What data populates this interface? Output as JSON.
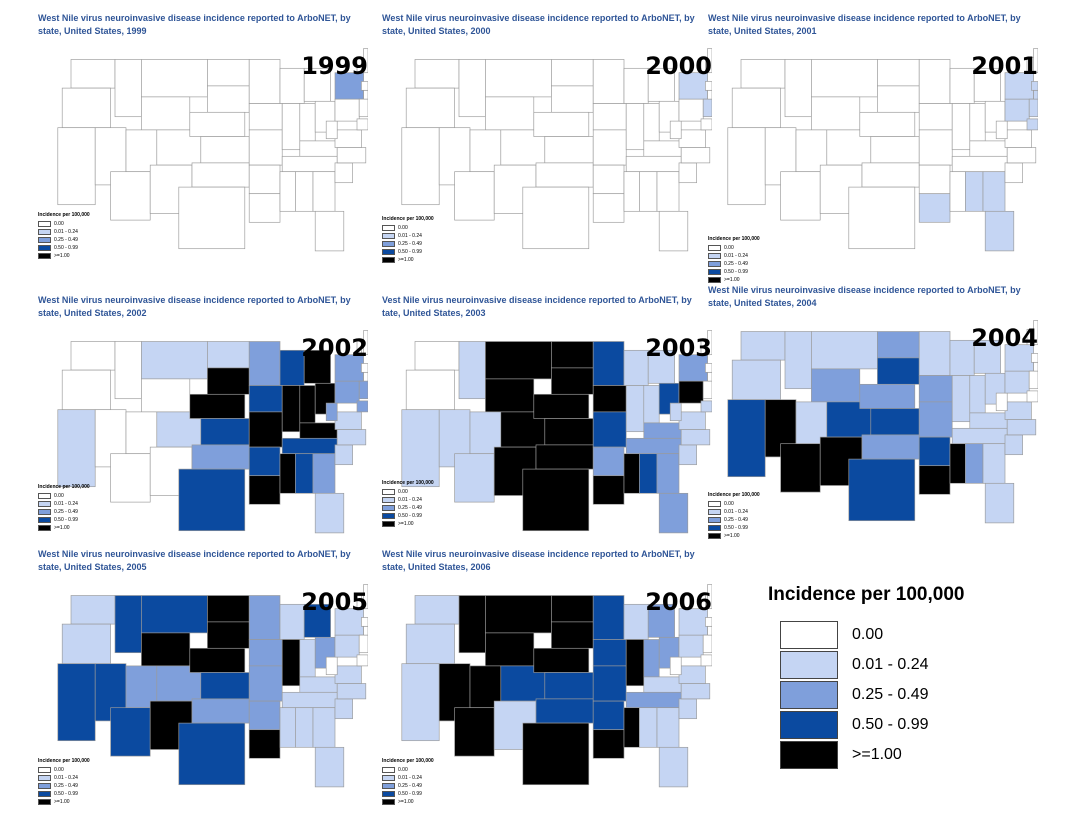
{
  "colors": {
    "none": "#ffffff",
    "low": "#c5d5f3",
    "mid": "#7f9fdb",
    "high": "#0b4aa0",
    "top": "#000000"
  },
  "legend": {
    "title": "Incidence per 100,000",
    "items": [
      {
        "label": "0.00",
        "color": "#ffffff"
      },
      {
        "label": "0.01 - 0.24",
        "color": "#c5d5f3"
      },
      {
        "label": "0.25 - 0.49",
        "color": "#7f9fdb"
      },
      {
        "label": "0.50 - 0.99",
        "color": "#0b4aa0"
      },
      {
        "label": ">=1.00",
        "color": "#000000"
      }
    ]
  },
  "panels": [
    {
      "title": "West Nile virus neuroinvasive disease incidence reported to ArboNET, by state, United States, 1999",
      "year": "1999",
      "fills": {
        "NY": "mid"
      }
    },
    {
      "title": "West Nile virus neuroinvasive disease incidence reported to ArboNET, by state, United States, 2000",
      "year": "2000",
      "fills": {
        "NY": "low",
        "NJ": "low"
      }
    },
    {
      "title": "West Nile virus neuroinvasive disease incidence reported to ArboNET, by state, United States, 2001",
      "year": "2001",
      "fills": {
        "NY": "low",
        "PA": "low",
        "NJ": "low",
        "CT": "low",
        "MA": "low",
        "MD": "low",
        "LA": "low",
        "AL": "low",
        "GA": "low",
        "FL": "low"
      }
    },
    {
      "title": "West Nile virus neuroinvasive disease incidence reported to ArboNET, by state, United States, 2002",
      "year": "2002",
      "fills": {
        "MT": "low",
        "CA": "low",
        "CO": "low",
        "SD": "top",
        "NE": "top",
        "MI": "top",
        "IL": "top",
        "IN": "top",
        "OH": "top",
        "LA": "top",
        "MS": "top",
        "KY": "top",
        "MO": "top",
        "KS": "high",
        "TX": "high",
        "IA": "high",
        "AL": "high",
        "TN": "high",
        "WI": "high",
        "OK": "mid",
        "GA": "mid",
        "PA": "mid",
        "NY": "mid",
        "MN": "mid",
        "WV": "mid",
        "VA": "low",
        "NC": "low",
        "SC": "low",
        "FL": "low",
        "AR": "high",
        "MD": "mid",
        "NJ": "mid",
        "ND": "low"
      }
    },
    {
      "title": "Vest Nile virus neuroinvasive disease incidence reported to ArboNET, by tate, United States, 2003",
      "year": "2003",
      "fills": {
        "MT": "top",
        "WY": "top",
        "ND": "top",
        "SD": "top",
        "NE": "top",
        "CO": "top",
        "KS": "top",
        "OK": "top",
        "NM": "top",
        "TX": "top",
        "IA": "top",
        "LA": "top",
        "MS": "top",
        "PA": "top",
        "MN": "high",
        "MO": "high",
        "AL": "high",
        "OH": "high",
        "WI": "low",
        "MI": "low",
        "IL": "low",
        "IN": "low",
        "ID": "low",
        "UT": "low",
        "AZ": "low",
        "CA": "low",
        "NV": "low",
        "AR": "mid",
        "KY": "mid",
        "TN": "mid",
        "GA": "mid",
        "NY": "mid",
        "VA": "low",
        "NC": "low",
        "SC": "low",
        "FL": "mid",
        "WV": "low",
        "MD": "low"
      }
    },
    {
      "title": "West Nile virus neuroinvasive disease incidence reported to ArboNET, by state, United States, 2004",
      "year": "2004",
      "fills": {
        "CA": "high",
        "NV": "top",
        "AZ": "top",
        "NM": "top",
        "LA": "top",
        "MS": "top",
        "CO": "high",
        "KS": "high",
        "SD": "high",
        "TX": "high",
        "AR": "high",
        "WY": "mid",
        "NE": "mid",
        "ND": "mid",
        "IA": "mid",
        "MO": "mid",
        "OK": "mid",
        "AL": "mid",
        "MT": "low",
        "ID": "low",
        "UT": "low",
        "MN": "low",
        "WI": "low",
        "MI": "low",
        "IL": "low",
        "IN": "low",
        "OH": "low",
        "KY": "low",
        "TN": "low",
        "GA": "low",
        "FL": "low",
        "PA": "low",
        "NY": "low",
        "VA": "low",
        "NC": "low",
        "SC": "low",
        "WA": "low",
        "OR": "low"
      }
    },
    {
      "title": "West Nile virus neuroinvasive disease incidence reported to ArboNET, by state, United States, 2005",
      "year": "2005",
      "fills": {
        "CA": "high",
        "NV": "high",
        "AZ": "high",
        "MT": "high",
        "ID": "high",
        "KS": "high",
        "MI": "high",
        "UT": "mid",
        "ND": "top",
        "SD": "top",
        "WY": "top",
        "NE": "top",
        "NM": "top",
        "IL": "top",
        "LA": "top",
        "TX": "high",
        "CO": "mid",
        "OK": "mid",
        "IA": "mid",
        "MO": "mid",
        "OH": "mid",
        "MS": "low",
        "WA": "low",
        "OR": "low",
        "MN": "mid",
        "AR": "mid",
        "WI": "low",
        "IN": "low",
        "KY": "low",
        "TN": "low",
        "AL": "low",
        "GA": "low",
        "FL": "low",
        "PA": "low",
        "NY": "low",
        "VA": "low",
        "NC": "low",
        "SC": "low"
      }
    },
    {
      "title": "West Nile virus neuroinvasive disease incidence reported to ArboNET, by state, United States, 2006",
      "year": "2006",
      "fills": {
        "ID": "top",
        "MT": "top",
        "WY": "top",
        "ND": "top",
        "SD": "top",
        "NE": "top",
        "NV": "top",
        "UT": "top",
        "AZ": "top",
        "TX": "top",
        "LA": "top",
        "MS": "top",
        "IL": "top",
        "CO": "high",
        "KS": "high",
        "MN": "high",
        "IA": "high",
        "MO": "high",
        "AR": "high",
        "OK": "high",
        "NM": "low",
        "CA": "low",
        "OR": "low",
        "WA": "low",
        "WI": "low",
        "MI": "mid",
        "OH": "mid",
        "IN": "mid",
        "KY": "low",
        "TN": "mid",
        "AL": "low",
        "GA": "low",
        "FL": "low",
        "PA": "low",
        "NY": "low",
        "VA": "low",
        "NC": "low",
        "SC": "low"
      }
    }
  ]
}
